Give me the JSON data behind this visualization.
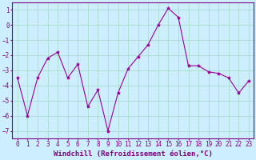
{
  "x": [
    0,
    1,
    2,
    3,
    4,
    5,
    6,
    7,
    8,
    9,
    10,
    11,
    12,
    13,
    14,
    15,
    16,
    17,
    18,
    19,
    20,
    21,
    22,
    23
  ],
  "y": [
    -3.5,
    -6.0,
    -3.5,
    -2.2,
    -1.8,
    -3.5,
    -2.6,
    -5.4,
    -4.3,
    -7.0,
    -4.5,
    -2.9,
    -2.1,
    -1.3,
    0.0,
    1.1,
    0.5,
    -2.7,
    -2.7,
    -3.1,
    -3.2,
    -3.5,
    -4.5,
    -3.7
  ],
  "line_color": "#990099",
  "marker": "*",
  "marker_size": 3,
  "bg_color": "#cceeff",
  "grid_color": "#aaddcc",
  "xlabel": "Windchill (Refroidissement éolien,°C)",
  "xlim": [
    -0.5,
    23.5
  ],
  "ylim": [
    -7.5,
    1.5
  ],
  "yticks": [
    1,
    0,
    -1,
    -2,
    -3,
    -4,
    -5,
    -6,
    -7
  ],
  "xtick_labels": [
    "0",
    "1",
    "2",
    "3",
    "4",
    "5",
    "6",
    "7",
    "8",
    "9",
    "10",
    "11",
    "12",
    "13",
    "14",
    "15",
    "16",
    "17",
    "18",
    "19",
    "20",
    "21",
    "22",
    "23"
  ],
  "xlabel_color": "#800080",
  "tick_color": "#800080",
  "spine_color": "#800080",
  "ylabel_color": "#800080",
  "label_fontsize": 6.5,
  "tick_fontsize": 5.5
}
